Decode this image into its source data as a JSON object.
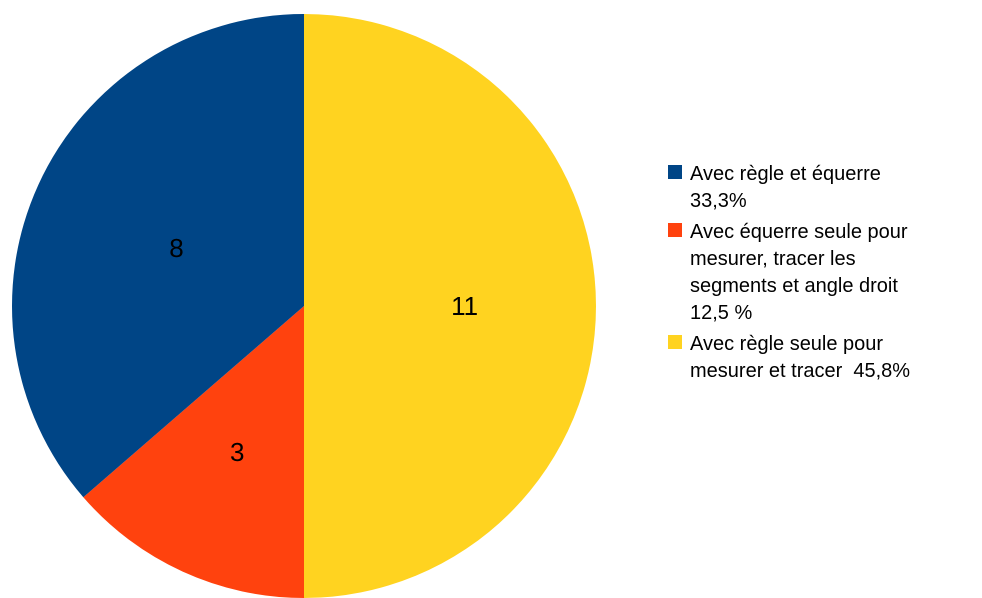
{
  "chart_data": {
    "type": "pie",
    "categories": [
      "Avec règle et équerre 33,3%",
      "Avec équerre seule pour mesurer, tracer les segments et angle droit 12,5 %",
      "Avec règle seule pour mesurer et tracer  45,8%"
    ],
    "values": [
      8,
      3,
      11
    ],
    "data_labels": [
      "8",
      "3",
      "11"
    ],
    "colors": [
      "#004586",
      "#ff420e",
      "#ffd320"
    ],
    "legend": {
      "placement": "right",
      "entries": [
        {
          "lines": [
            "Avec règle et équerre",
            "33,3%"
          ]
        },
        {
          "lines": [
            "Avec équerre seule pour",
            "mesurer, tracer les",
            "segments et angle droit",
            "12,5 %"
          ]
        },
        {
          "lines": [
            "Avec règle seule pour",
            "mesurer et tracer  45,8%"
          ]
        }
      ]
    }
  }
}
